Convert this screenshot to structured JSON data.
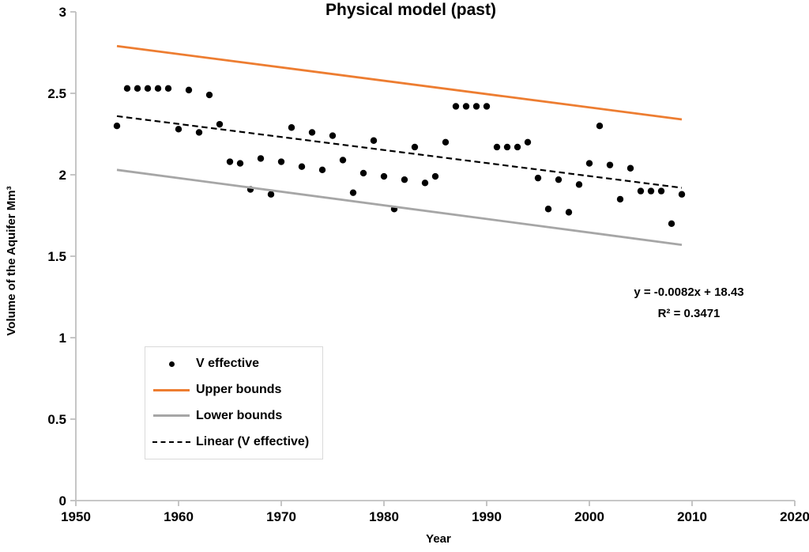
{
  "chart_data": {
    "type": "scatter",
    "title": "Physical model (past)",
    "xlabel": "Year",
    "ylabel": "Volume of the Aquifer Mm³",
    "xlim": [
      1950,
      2020
    ],
    "ylim": [
      0,
      3
    ],
    "grid": false,
    "legend_position": "inside-bottom-left",
    "axis_color": "#BFBFBF",
    "x_ticks": {
      "values": [
        1950,
        1960,
        1970,
        1980,
        1990,
        2000,
        2010,
        2020
      ],
      "labels": [
        "1950",
        "1960",
        "1970",
        "1980",
        "1990",
        "2000",
        "2010",
        "2020"
      ]
    },
    "y_ticks": {
      "values": [
        0,
        0.5,
        1,
        1.5,
        2,
        2.5,
        3
      ],
      "labels": [
        "0",
        "0.5",
        "1",
        "1.5",
        "2",
        "2.5",
        "3"
      ]
    },
    "annotations": [
      "y = -0.0082x + 18.43",
      "R² = 0.3471"
    ],
    "series": [
      {
        "name": "V effective",
        "kind": "scatter",
        "marker": "dot",
        "color": "#000000",
        "x": [
          1954,
          1955,
          1956,
          1957,
          1958,
          1959,
          1960,
          1961,
          1962,
          1963,
          1964,
          1965,
          1966,
          1967,
          1968,
          1969,
          1970,
          1971,
          1972,
          1973,
          1974,
          1975,
          1976,
          1977,
          1978,
          1979,
          1980,
          1981,
          1982,
          1983,
          1984,
          1985,
          1986,
          1987,
          1988,
          1989,
          1990,
          1991,
          1992,
          1993,
          1994,
          1995,
          1996,
          1997,
          1998,
          1999,
          2000,
          2001,
          2002,
          2003,
          2004,
          2005,
          2006,
          2007,
          2008,
          2009
        ],
        "y": [
          2.3,
          2.53,
          2.53,
          2.53,
          2.53,
          2.53,
          2.28,
          2.52,
          2.26,
          2.49,
          2.31,
          2.08,
          2.07,
          1.91,
          2.1,
          1.88,
          2.08,
          2.29,
          2.05,
          2.26,
          2.03,
          2.24,
          2.09,
          1.89,
          2.01,
          2.21,
          1.99,
          1.79,
          1.97,
          2.17,
          1.95,
          1.99,
          2.2,
          2.42,
          2.42,
          2.42,
          2.42,
          2.17,
          2.17,
          2.17,
          2.2,
          1.98,
          1.79,
          1.97,
          1.77,
          1.94,
          2.07,
          2.3,
          2.06,
          1.85,
          2.04,
          1.9,
          1.9,
          1.9,
          1.7,
          1.88
        ]
      },
      {
        "name": "Upper bounds",
        "kind": "line",
        "marker": "line",
        "color": "#ED7D31",
        "x": [
          1954,
          2009
        ],
        "y": [
          2.79,
          2.34
        ]
      },
      {
        "name": "Lower bounds",
        "kind": "line",
        "marker": "line",
        "color": "#A6A6A6",
        "x": [
          1954,
          2009
        ],
        "y": [
          2.03,
          1.57
        ]
      },
      {
        "name": "Linear (V effective)",
        "kind": "dashed-line",
        "marker": "dash",
        "color": "#000000",
        "x": [
          1954,
          2009
        ],
        "y": [
          2.36,
          1.92
        ],
        "equation": "y = -0.0082x + 18.43",
        "r_squared": "R² = 0.3471"
      }
    ]
  }
}
